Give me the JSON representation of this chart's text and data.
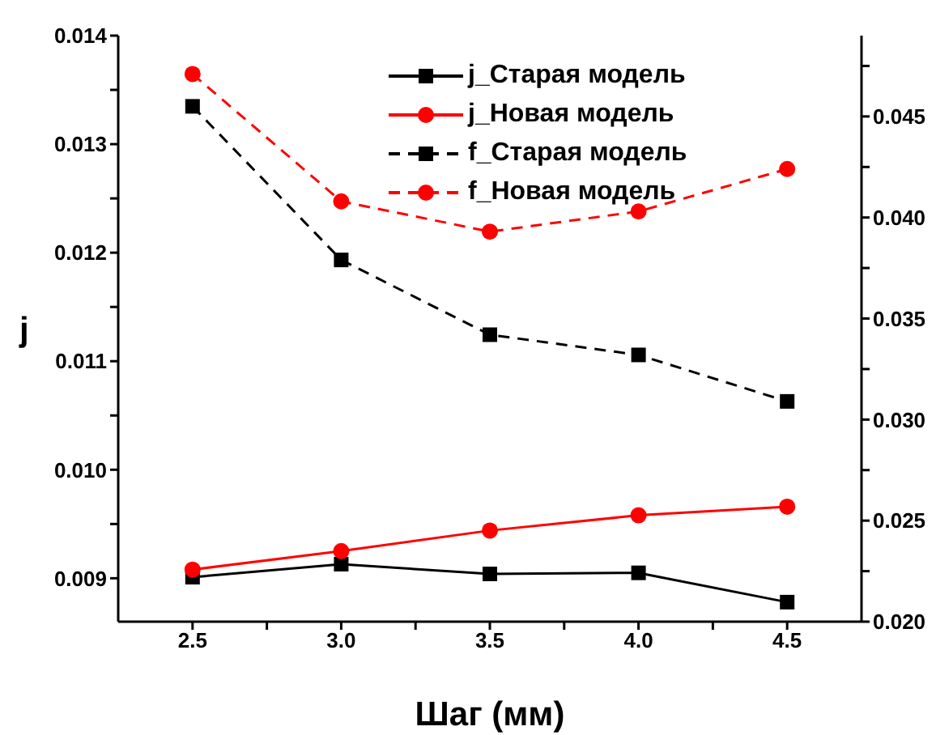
{
  "chart_data": {
    "type": "line",
    "xlabel": "Шаг (мм)",
    "ylabel": "j",
    "x": [
      2.5,
      3.0,
      3.5,
      4.0,
      4.5
    ],
    "series": [
      {
        "name": "j_Старая модель",
        "color": "#000000",
        "marker": "square",
        "line_style": "solid",
        "values": [
          0.00901,
          0.00913,
          0.00904,
          0.00905,
          0.00878
        ]
      },
      {
        "name": "j_Новая модель",
        "color": "#ff0000",
        "marker": "circle",
        "line_style": "solid",
        "values": [
          0.00908,
          0.00925,
          0.00944,
          0.00958,
          0.00966
        ]
      },
      {
        "name": "f_Старая модель",
        "color": "#000000",
        "marker": "square",
        "line_style": "dashed",
        "axis": "y2",
        "values": [
          0.0455,
          0.0379,
          0.0342,
          0.0332,
          0.0309
        ]
      },
      {
        "name": "f_Новая модель",
        "color": "#ff0000",
        "marker": "circle",
        "line_style": "dashed",
        "axis": "y2",
        "values": [
          0.0471,
          0.0408,
          0.0393,
          0.0403,
          0.0424
        ]
      }
    ],
    "xlim": [
      2.25,
      4.75
    ],
    "xticks": [
      2.5,
      {
        "value": 2.75,
        "label": null
      },
      {
        "value": 3,
        "label": "3.0"
      },
      {
        "value": 3.25,
        "label": null
      },
      3.5,
      {
        "value": 3.75,
        "label": null
      },
      {
        "value": 4,
        "label": "4.0"
      },
      {
        "value": 4.25,
        "label": null
      },
      4.5
    ],
    "ylim": [
      0.0086,
      0.014
    ],
    "yticks": [
      0.009,
      {
        "value": 0.0095,
        "label": null
      },
      {
        "value": 0.01,
        "label": "0.010"
      },
      {
        "value": 0.0105,
        "label": null
      },
      0.011,
      {
        "value": 0.0115,
        "label": null
      },
      0.012,
      {
        "value": 0.0125,
        "label": null
      },
      0.013,
      {
        "value": 0.0135,
        "label": null
      },
      0.014
    ],
    "y2lim": [
      0.02,
      0.049
    ],
    "y2ticks": [
      {
        "value": 0.02,
        "label": "0.020"
      },
      {
        "value": 0.0225,
        "label": null
      },
      0.025,
      {
        "value": 0.0275,
        "label": null
      },
      {
        "value": 0.03,
        "label": "0.030"
      },
      {
        "value": 0.0325,
        "label": null
      },
      0.035,
      {
        "value": 0.0375,
        "label": null
      },
      {
        "value": 0.04,
        "label": "0.040"
      },
      {
        "value": 0.0425,
        "label": null
      },
      0.045,
      {
        "value": 0.0475,
        "label": null
      }
    ],
    "grid": false,
    "legend": "top right"
  }
}
